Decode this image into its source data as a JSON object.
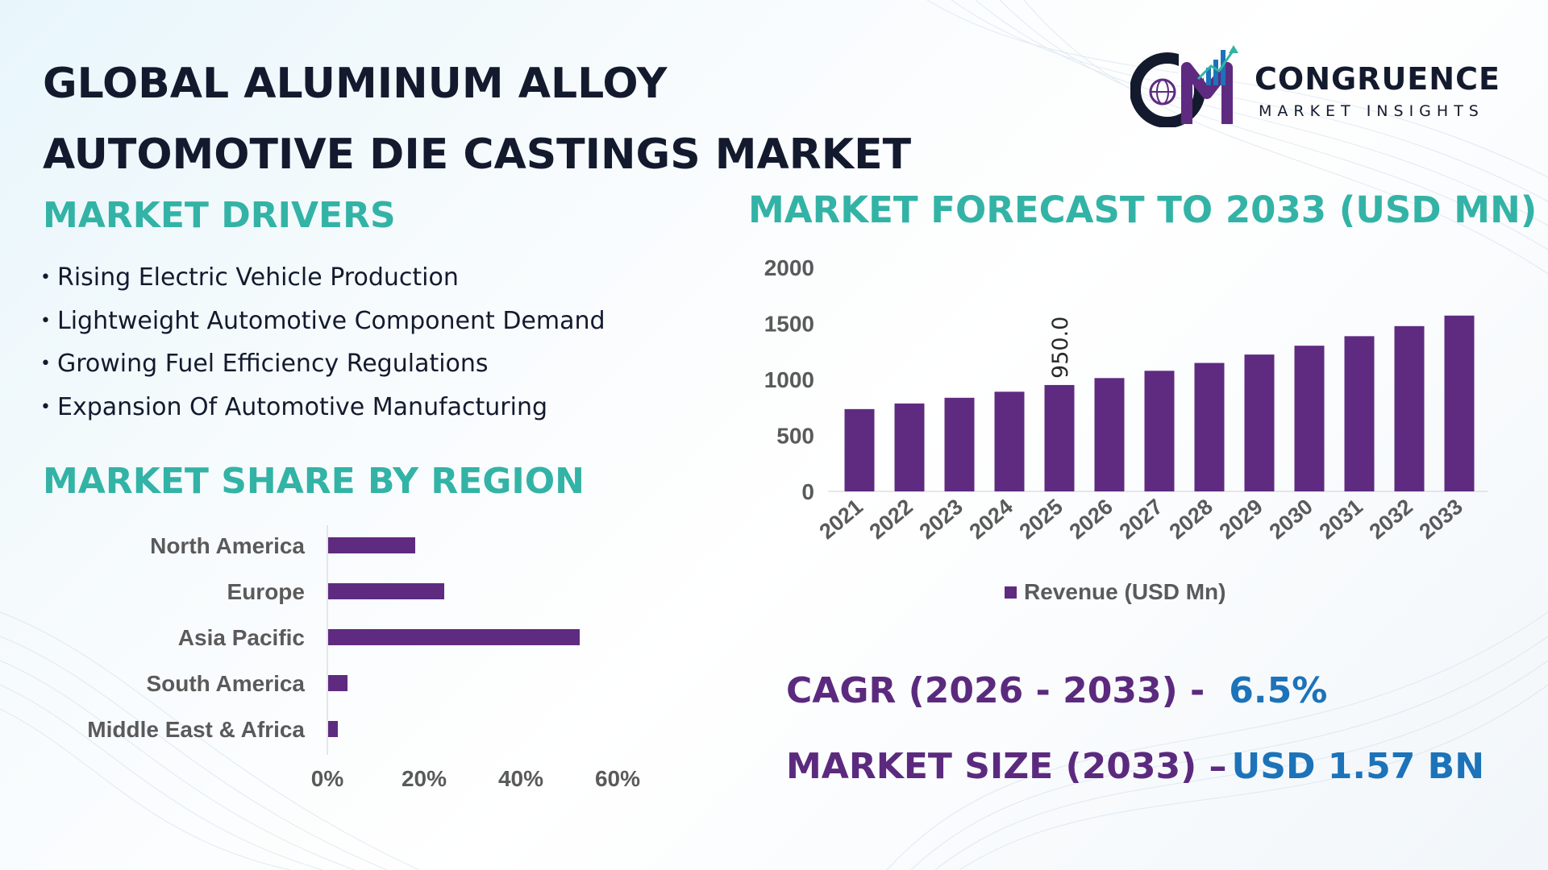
{
  "colors": {
    "bar": "#5e2b80",
    "heading": "#33b3a6",
    "title": "#141a2e",
    "kpi_label": "#5b2a7e",
    "kpi_value": "#1c73b9",
    "axis_text": "#5a5a5a"
  },
  "title": {
    "line1": "GLOBAL ALUMINUM ALLOY",
    "line2": "AUTOMOTIVE DIE CASTINGS MARKET"
  },
  "logo": {
    "icon": "cm-globe-growth-logo-icon",
    "name": "CONGRUENCE",
    "tagline": "MARKET INSIGHTS"
  },
  "drivers": {
    "heading": "MARKET DRIVERS",
    "items": [
      "Rising Electric Vehicle Production",
      "Lightweight Automotive Component Demand",
      "Growing Fuel Efficiency Regulations",
      "Expansion Of Automotive Manufacturing"
    ]
  },
  "region": {
    "heading": "MARKET SHARE BY REGION"
  },
  "forecast": {
    "heading": "MARKET FORECAST TO 2033 (USD MN)"
  },
  "kpis": {
    "cagr_label": "CAGR (2026 - 2033) -",
    "cagr_value": "6.5%",
    "size_label": "MARKET SIZE (2033) –",
    "size_value": "USD 1.57 BN"
  },
  "chart_data": [
    {
      "type": "bar",
      "orientation": "horizontal",
      "categories": [
        "North America",
        "Europe",
        "Asia Pacific",
        "South America",
        "Middle East & Africa"
      ],
      "values": [
        18,
        24,
        52,
        4,
        2
      ],
      "xlim": [
        0,
        60
      ],
      "xticks": [
        "0%",
        "20%",
        "40%",
        "60%"
      ],
      "grid": false
    },
    {
      "type": "bar",
      "categories": [
        "2021",
        "2022",
        "2023",
        "2024",
        "2025",
        "2026",
        "2027",
        "2028",
        "2029",
        "2030",
        "2031",
        "2032",
        "2033"
      ],
      "series": [
        {
          "name": "Revenue (USD Mn)",
          "values": [
            735,
            785,
            836,
            890,
            950,
            1012,
            1077,
            1147,
            1222,
            1301,
            1386,
            1476,
            1570
          ]
        }
      ],
      "ylim": [
        0,
        2000
      ],
      "yticks": [
        "0",
        "500",
        "1000",
        "1500",
        "2000"
      ],
      "data_labels": [
        {
          "index": 4,
          "text": "950.0"
        }
      ],
      "legend": "bottom",
      "grid": false
    }
  ]
}
